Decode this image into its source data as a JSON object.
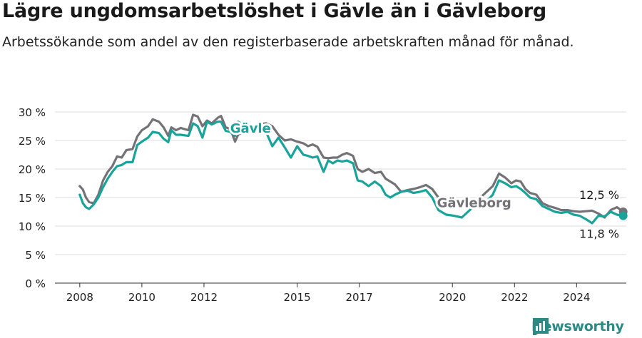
{
  "title": "Lägre ungdomsarbetslöshet i Gävle än i Gävleborg",
  "subtitle": "Arbetssökande som andel av den registerbaserade arbetskraften månad för månad.",
  "brand": "Newsworthy",
  "colors": {
    "gavle": "#1aa39a",
    "gavleborg": "#737276",
    "grid": "#dedede",
    "axis": "#333333"
  },
  "chart_data": {
    "type": "line",
    "title": "Lägre ungdomsarbetslöshet i Gävle än i Gävleborg",
    "ylabel": "",
    "xlabel": "",
    "ylim": [
      0,
      30
    ],
    "y_ticks": [
      0,
      5,
      10,
      15,
      20,
      25,
      30
    ],
    "y_tick_labels": [
      "0 %",
      "5 %",
      "10 %",
      "15 %",
      "20 %",
      "25 %",
      "30 %"
    ],
    "x_ticks": [
      2008,
      2010,
      2012,
      2015,
      2017,
      2020,
      2022,
      2024
    ],
    "x_tick_labels": [
      "2008",
      "2010",
      "2012",
      "2015",
      "2017",
      "2020",
      "2022",
      "2024"
    ],
    "xlim": [
      2007.2,
      2025.6
    ],
    "grid": true,
    "legend": "inline labels",
    "end_labels": {
      "gavleborg": "12,5 %",
      "gavle": "11,8 %"
    },
    "series": [
      {
        "name": "Gävleborg",
        "points": [
          [
            2008.0,
            17.0
          ],
          [
            2008.1,
            16.4
          ],
          [
            2008.2,
            15.0
          ],
          [
            2008.3,
            14.2
          ],
          [
            2008.45,
            14.0
          ],
          [
            2008.6,
            15.5
          ],
          [
            2008.75,
            18.0
          ],
          [
            2008.9,
            19.5
          ],
          [
            2009.05,
            20.5
          ],
          [
            2009.2,
            22.2
          ],
          [
            2009.35,
            22.0
          ],
          [
            2009.5,
            23.3
          ],
          [
            2009.7,
            23.5
          ],
          [
            2009.85,
            25.7
          ],
          [
            2010.0,
            26.8
          ],
          [
            2010.2,
            27.5
          ],
          [
            2010.35,
            28.7
          ],
          [
            2010.55,
            28.3
          ],
          [
            2010.7,
            27.3
          ],
          [
            2010.85,
            25.8
          ],
          [
            2010.95,
            27.3
          ],
          [
            2011.1,
            26.8
          ],
          [
            2011.25,
            27.2
          ],
          [
            2011.5,
            26.8
          ],
          [
            2011.65,
            29.5
          ],
          [
            2011.8,
            29.2
          ],
          [
            2011.95,
            27.5
          ],
          [
            2012.1,
            28.5
          ],
          [
            2012.25,
            28.0
          ],
          [
            2012.45,
            29.0
          ],
          [
            2012.55,
            29.3
          ],
          [
            2012.7,
            27.3
          ],
          [
            2012.85,
            27.0
          ],
          [
            2013.0,
            24.8
          ],
          [
            2013.1,
            26.0
          ],
          [
            2013.25,
            26.5
          ],
          [
            2013.4,
            27.0
          ],
          [
            2013.55,
            27.6
          ],
          [
            2013.7,
            27.8
          ],
          [
            2014.0,
            28.0
          ],
          [
            2014.2,
            27.5
          ],
          [
            2014.4,
            26.0
          ],
          [
            2014.6,
            25.0
          ],
          [
            2014.8,
            25.2
          ],
          [
            2015.0,
            24.8
          ],
          [
            2015.2,
            24.5
          ],
          [
            2015.35,
            24.0
          ],
          [
            2015.5,
            24.3
          ],
          [
            2015.65,
            23.9
          ],
          [
            2015.85,
            22.0
          ],
          [
            2016.0,
            21.9
          ],
          [
            2016.15,
            22.0
          ],
          [
            2016.3,
            22.0
          ],
          [
            2016.45,
            22.5
          ],
          [
            2016.6,
            22.8
          ],
          [
            2016.8,
            22.3
          ],
          [
            2016.95,
            20.0
          ],
          [
            2017.1,
            19.5
          ],
          [
            2017.3,
            20.0
          ],
          [
            2017.5,
            19.3
          ],
          [
            2017.7,
            19.5
          ],
          [
            2017.85,
            18.3
          ],
          [
            2018.0,
            17.8
          ],
          [
            2018.15,
            17.3
          ],
          [
            2018.35,
            16.0
          ],
          [
            2018.55,
            16.3
          ],
          [
            2018.75,
            16.5
          ],
          [
            2018.95,
            16.8
          ],
          [
            2019.15,
            17.2
          ],
          [
            2019.35,
            16.5
          ],
          [
            2019.55,
            15.0
          ],
          [
            2019.8,
            14.0
          ],
          [
            2020.05,
            13.8
          ],
          [
            2020.3,
            13.5
          ],
          [
            2020.5,
            13.8
          ],
          [
            2020.7,
            14.2
          ],
          [
            2020.9,
            15.0
          ],
          [
            2021.1,
            16.0
          ],
          [
            2021.3,
            17.0
          ],
          [
            2021.5,
            19.2
          ],
          [
            2021.7,
            18.5
          ],
          [
            2021.9,
            17.5
          ],
          [
            2022.05,
            18.0
          ],
          [
            2022.2,
            17.8
          ],
          [
            2022.35,
            16.5
          ],
          [
            2022.5,
            15.8
          ],
          [
            2022.7,
            15.5
          ],
          [
            2022.9,
            14.0
          ],
          [
            2023.1,
            13.5
          ],
          [
            2023.3,
            13.2
          ],
          [
            2023.5,
            12.8
          ],
          [
            2023.7,
            12.8
          ],
          [
            2023.9,
            12.6
          ],
          [
            2024.1,
            12.5
          ],
          [
            2024.3,
            12.6
          ],
          [
            2024.5,
            12.7
          ],
          [
            2024.7,
            12.2
          ],
          [
            2024.9,
            11.5
          ],
          [
            2025.1,
            12.8
          ],
          [
            2025.3,
            13.3
          ],
          [
            2025.5,
            12.5
          ]
        ]
      },
      {
        "name": "Gävle",
        "points": [
          [
            2008.0,
            15.5
          ],
          [
            2008.1,
            14.0
          ],
          [
            2008.2,
            13.3
          ],
          [
            2008.3,
            13.0
          ],
          [
            2008.45,
            13.8
          ],
          [
            2008.6,
            15.0
          ],
          [
            2008.75,
            16.8
          ],
          [
            2008.9,
            18.3
          ],
          [
            2009.05,
            19.5
          ],
          [
            2009.2,
            20.5
          ],
          [
            2009.35,
            20.7
          ],
          [
            2009.5,
            21.2
          ],
          [
            2009.7,
            21.2
          ],
          [
            2009.85,
            24.2
          ],
          [
            2010.0,
            24.8
          ],
          [
            2010.2,
            25.5
          ],
          [
            2010.35,
            26.5
          ],
          [
            2010.55,
            26.3
          ],
          [
            2010.7,
            25.3
          ],
          [
            2010.85,
            24.7
          ],
          [
            2010.95,
            26.8
          ],
          [
            2011.1,
            26.0
          ],
          [
            2011.25,
            26.0
          ],
          [
            2011.5,
            25.8
          ],
          [
            2011.65,
            28.0
          ],
          [
            2011.8,
            27.5
          ],
          [
            2011.95,
            25.5
          ],
          [
            2012.1,
            28.3
          ],
          [
            2012.25,
            27.8
          ],
          [
            2012.45,
            28.3
          ],
          [
            2012.55,
            28.3
          ],
          [
            2012.7,
            26.7
          ],
          [
            2012.85,
            26.5
          ],
          [
            2013.0,
            25.8
          ],
          [
            2013.1,
            28.3
          ],
          [
            2013.25,
            27.8
          ],
          [
            2013.4,
            27.8
          ],
          [
            2013.55,
            27.6
          ],
          [
            2013.7,
            27.6
          ],
          [
            2014.0,
            26.5
          ],
          [
            2014.2,
            24.0
          ],
          [
            2014.4,
            25.5
          ],
          [
            2014.6,
            23.8
          ],
          [
            2014.8,
            22.0
          ],
          [
            2015.0,
            24.0
          ],
          [
            2015.2,
            22.5
          ],
          [
            2015.35,
            22.3
          ],
          [
            2015.5,
            22.0
          ],
          [
            2015.65,
            22.2
          ],
          [
            2015.85,
            19.5
          ],
          [
            2016.0,
            21.5
          ],
          [
            2016.15,
            21.0
          ],
          [
            2016.3,
            21.5
          ],
          [
            2016.45,
            21.3
          ],
          [
            2016.6,
            21.5
          ],
          [
            2016.8,
            21.0
          ],
          [
            2016.95,
            18.0
          ],
          [
            2017.1,
            17.8
          ],
          [
            2017.3,
            17.0
          ],
          [
            2017.5,
            17.8
          ],
          [
            2017.7,
            17.0
          ],
          [
            2017.85,
            15.5
          ],
          [
            2018.0,
            15.0
          ],
          [
            2018.15,
            15.5
          ],
          [
            2018.35,
            16.0
          ],
          [
            2018.55,
            16.2
          ],
          [
            2018.75,
            15.8
          ],
          [
            2018.95,
            16.0
          ],
          [
            2019.15,
            16.3
          ],
          [
            2019.35,
            15.0
          ],
          [
            2019.55,
            12.8
          ],
          [
            2019.8,
            12.0
          ],
          [
            2020.05,
            11.8
          ],
          [
            2020.3,
            11.5
          ],
          [
            2020.5,
            12.5
          ],
          [
            2020.7,
            13.5
          ],
          [
            2020.9,
            14.0
          ],
          [
            2021.1,
            14.3
          ],
          [
            2021.3,
            15.5
          ],
          [
            2021.5,
            18.0
          ],
          [
            2021.7,
            17.5
          ],
          [
            2021.9,
            16.8
          ],
          [
            2022.05,
            17.0
          ],
          [
            2022.2,
            16.5
          ],
          [
            2022.35,
            15.8
          ],
          [
            2022.5,
            15.0
          ],
          [
            2022.7,
            14.7
          ],
          [
            2022.9,
            13.5
          ],
          [
            2023.1,
            13.0
          ],
          [
            2023.3,
            12.5
          ],
          [
            2023.5,
            12.3
          ],
          [
            2023.7,
            12.5
          ],
          [
            2023.9,
            12.0
          ],
          [
            2024.1,
            11.8
          ],
          [
            2024.3,
            11.2
          ],
          [
            2024.5,
            10.5
          ],
          [
            2024.7,
            11.8
          ],
          [
            2024.9,
            11.7
          ],
          [
            2025.1,
            12.5
          ],
          [
            2025.3,
            12.0
          ],
          [
            2025.5,
            11.8
          ]
        ]
      }
    ]
  }
}
